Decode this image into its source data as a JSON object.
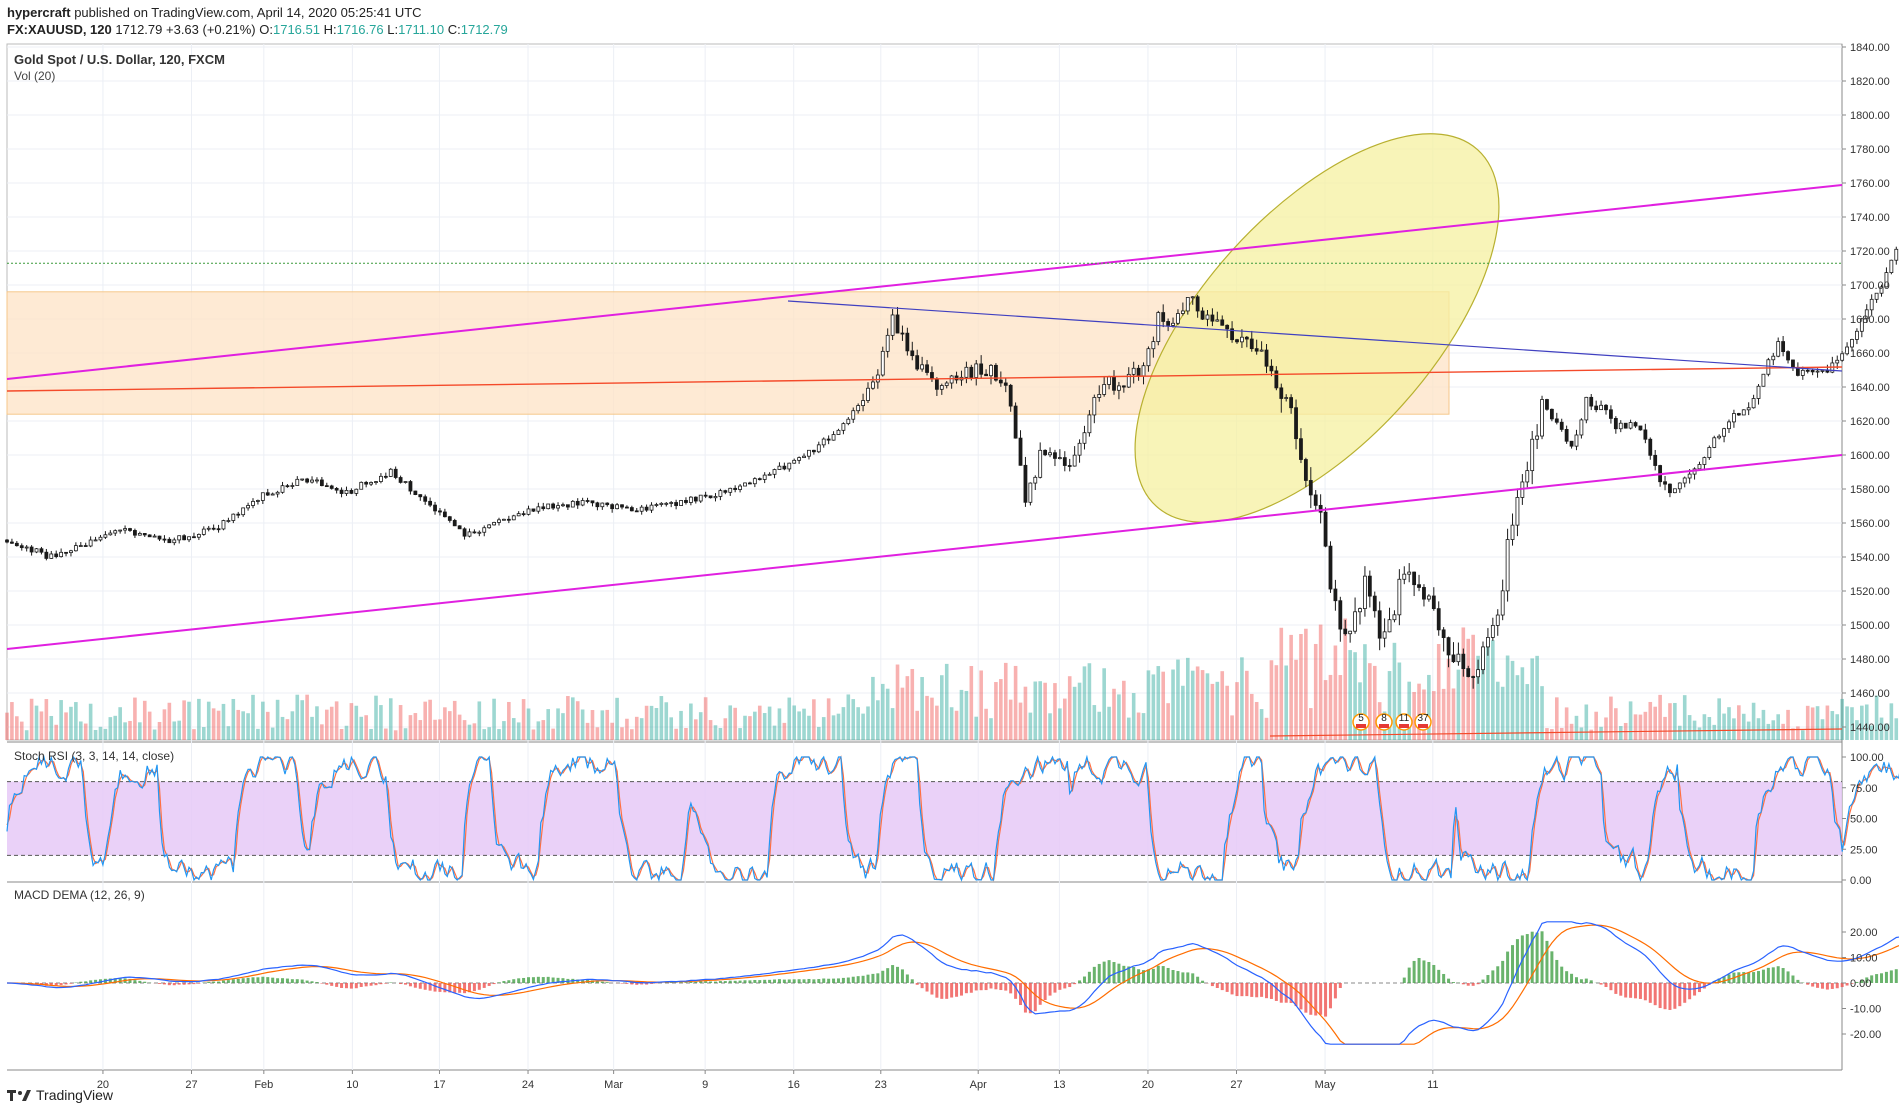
{
  "header": {
    "author": "hypercraft",
    "published": "published on TradingView.com, April 14, 2020 05:25:41 UTC",
    "symbol": "FX:XAUUSD, 120",
    "last": "1712.79",
    "change": "+3.63 (+0.21%)",
    "o_label": "O:",
    "o": "1716.51",
    "h_label": "H:",
    "h": "1716.76",
    "l_label": "L:",
    "l": "1711.10",
    "c_label": "C:",
    "c": "1712.79"
  },
  "footer": {
    "brand": "TradingView"
  },
  "colors": {
    "up": "#26a69a",
    "down": "#ef5350",
    "candle": "#1a1a1a",
    "channel": "#e020e0",
    "zone": "#fde3c5",
    "red_line": "#f44a2a",
    "blue_line": "#4040c0",
    "ellipse": "#f5f0a0",
    "rsi_band": "#e6c9f7",
    "rsi_k": "#2196f3",
    "rsi_d": "#ff7043",
    "macd": "#2962ff",
    "signal": "#ff6d00"
  },
  "chart_data": [
    {
      "type": "candlestick",
      "title": "Gold Spot / U.S. Dollar, 120, FXCM",
      "sub_label": "Vol (20)",
      "yticks": [
        "1840.00",
        "1820.00",
        "1800.00",
        "1780.00",
        "1760.00",
        "1740.00",
        "1720.00",
        "1700.00",
        "1680.00",
        "1660.00",
        "1640.00",
        "1620.00",
        "1600.00",
        "1580.00",
        "1560.00",
        "1540.00",
        "1520.00",
        "1500.00",
        "1480.00",
        "1460.00",
        "1440.00"
      ],
      "ylim": [
        1437,
        1841
      ],
      "xticks": [
        "20",
        "27",
        "Feb",
        "10",
        "17",
        "24",
        "Mar",
        "9",
        "16",
        "23",
        "Apr",
        "13",
        "20",
        "27",
        "May",
        "11"
      ],
      "last_price": 1712.79,
      "price_path": [
        {
          "d": 0,
          "p": 1550
        },
        {
          "d": 3,
          "p": 1540
        },
        {
          "d": 8,
          "p": 1556
        },
        {
          "d": 11,
          "p": 1550
        },
        {
          "d": 14,
          "p": 1556
        },
        {
          "d": 17,
          "p": 1575
        },
        {
          "d": 20,
          "p": 1586
        },
        {
          "d": 23,
          "p": 1578
        },
        {
          "d": 26,
          "p": 1590
        },
        {
          "d": 29,
          "p": 1568
        },
        {
          "d": 31,
          "p": 1553
        },
        {
          "d": 36,
          "p": 1570
        },
        {
          "d": 39,
          "p": 1572
        },
        {
          "d": 43,
          "p": 1568
        },
        {
          "d": 47,
          "p": 1575
        },
        {
          "d": 49,
          "p": 1580
        },
        {
          "d": 52,
          "p": 1590
        },
        {
          "d": 55,
          "p": 1605
        },
        {
          "d": 57,
          "p": 1620
        },
        {
          "d": 59,
          "p": 1645
        },
        {
          "d": 60,
          "p": 1682
        },
        {
          "d": 61,
          "p": 1660
        },
        {
          "d": 63,
          "p": 1640
        },
        {
          "d": 65,
          "p": 1650
        },
        {
          "d": 67,
          "p": 1648
        },
        {
          "d": 68,
          "p": 1632
        },
        {
          "d": 69,
          "p": 1570
        },
        {
          "d": 70,
          "p": 1600
        },
        {
          "d": 72,
          "p": 1593
        },
        {
          "d": 74,
          "p": 1640
        },
        {
          "d": 76,
          "p": 1645
        },
        {
          "d": 77,
          "p": 1652
        },
        {
          "d": 78,
          "p": 1680
        },
        {
          "d": 79,
          "p": 1673
        },
        {
          "d": 80,
          "p": 1696
        },
        {
          "d": 81,
          "p": 1680
        },
        {
          "d": 83,
          "p": 1672
        },
        {
          "d": 85,
          "p": 1660
        },
        {
          "d": 86,
          "p": 1640
        },
        {
          "d": 87,
          "p": 1625
        },
        {
          "d": 88,
          "p": 1580
        },
        {
          "d": 89,
          "p": 1560
        },
        {
          "d": 90,
          "p": 1510
        },
        {
          "d": 91,
          "p": 1490
        },
        {
          "d": 92,
          "p": 1525
        },
        {
          "d": 93,
          "p": 1490
        },
        {
          "d": 95,
          "p": 1535
        },
        {
          "d": 96,
          "p": 1520
        },
        {
          "d": 97,
          "p": 1500
        },
        {
          "d": 98,
          "p": 1480
        },
        {
          "d": 99,
          "p": 1470
        },
        {
          "d": 100,
          "p": 1485
        },
        {
          "d": 101,
          "p": 1510
        },
        {
          "d": 102,
          "p": 1560
        },
        {
          "d": 103,
          "p": 1590
        },
        {
          "d": 104,
          "p": 1630
        },
        {
          "d": 105,
          "p": 1620
        },
        {
          "d": 106,
          "p": 1605
        },
        {
          "d": 107,
          "p": 1632
        },
        {
          "d": 108,
          "p": 1628
        },
        {
          "d": 109,
          "p": 1615
        },
        {
          "d": 110,
          "p": 1620
        },
        {
          "d": 111,
          "p": 1610
        },
        {
          "d": 112,
          "p": 1585
        },
        {
          "d": 113,
          "p": 1578
        },
        {
          "d": 114,
          "p": 1590
        },
        {
          "d": 115,
          "p": 1600
        },
        {
          "d": 116,
          "p": 1612
        },
        {
          "d": 117,
          "p": 1622
        },
        {
          "d": 118,
          "p": 1625
        },
        {
          "d": 119,
          "p": 1648
        },
        {
          "d": 120,
          "p": 1665
        },
        {
          "d": 121,
          "p": 1650
        },
        {
          "d": 122,
          "p": 1648
        },
        {
          "d": 123,
          "p": 1650
        },
        {
          "d": 124,
          "p": 1655
        },
        {
          "d": 125,
          "p": 1670
        },
        {
          "d": 126,
          "p": 1685
        },
        {
          "d": 127,
          "p": 1700
        },
        {
          "d": 128,
          "p": 1722
        },
        {
          "d": 128.5,
          "p": 1713
        }
      ]
    },
    {
      "type": "line",
      "title": "Stoch RSI (3, 3, 14, 14, close)",
      "yticks": [
        "100.00",
        "75.00",
        "50.00",
        "25.00",
        "0.00"
      ],
      "ylim": [
        0,
        100
      ],
      "band": [
        20,
        80
      ]
    },
    {
      "type": "line",
      "title": "MACD DEMA (12, 26, 9)",
      "yticks": [
        "20.00",
        "10.00",
        "0.00",
        "-10.00",
        "-20.00"
      ],
      "ylim": [
        -20,
        20
      ]
    }
  ],
  "events": {
    "labels": [
      "5",
      "8",
      "11",
      "37"
    ]
  }
}
